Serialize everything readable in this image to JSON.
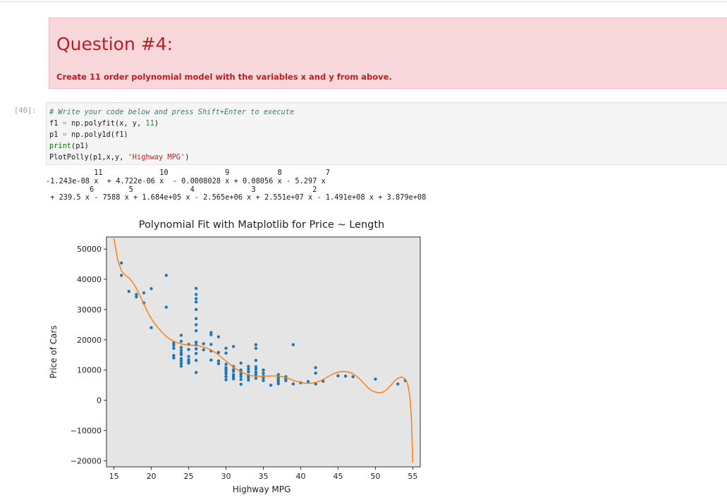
{
  "question": {
    "title": "Question #4:",
    "instruction": "Create 11 order polynomial model with the variables x and y from above."
  },
  "cell": {
    "prompt": "[40]:",
    "code": {
      "comment": "# Write your code below and press Shift+Enter to execute",
      "line2_a": "f1 ",
      "line2_op": "=",
      "line2_b": " np.polyfit(x, y, ",
      "line2_num": "11",
      "line2_c": ")",
      "line3_a": "p1 ",
      "line3_op": "=",
      "line3_b": " np.poly1d(f1)",
      "line4_kw": "print",
      "line4_b": "(p1)",
      "line5_a": "PlotPolly(p1,x,y, ",
      "line5_str": "'Highway MPG'",
      "line5_b": ")"
    },
    "output": [
      "           11             10             9           8          7",
      "-1.243e-08 x  + 4.722e-06 x  - 0.0008028 x + 0.08056 x - 5.297 x",
      "          6        5             4             3             2",
      " + 239.5 x - 7588 x + 1.684e+05 x - 2.565e+06 x + 2.551e+07 x - 1.491e+08 x + 3.879e+08"
    ]
  },
  "chart_data": {
    "type": "scatter",
    "title": "Polynomial Fit with Matplotlib for Price ~ Length",
    "xlabel": "Highway MPG",
    "ylabel": "Price of Cars",
    "xlim": [
      14,
      56
    ],
    "ylim": [
      -22000,
      54000
    ],
    "x_ticks": [
      15,
      20,
      25,
      30,
      35,
      40,
      45,
      50,
      55
    ],
    "y_ticks": [
      50000,
      40000,
      30000,
      20000,
      10000,
      0,
      -10000,
      -20000
    ],
    "y_tick_labels": [
      "50000",
      "40000",
      "30000",
      "20000",
      "10000",
      "0",
      "−10000",
      "−20000"
    ],
    "grid": false,
    "background": "#e5e5e5",
    "colors": {
      "points": "#1f77b4",
      "fit": "#ff7f0e"
    },
    "points": [
      [
        16,
        45400
      ],
      [
        16,
        41300
      ],
      [
        17,
        36000
      ],
      [
        18,
        35000
      ],
      [
        18,
        34200
      ],
      [
        19,
        35500
      ],
      [
        19,
        32200
      ],
      [
        20,
        36900
      ],
      [
        20,
        24000
      ],
      [
        22,
        41300
      ],
      [
        22,
        30800
      ],
      [
        23,
        19000
      ],
      [
        23,
        18200
      ],
      [
        23,
        17200
      ],
      [
        23,
        14800
      ],
      [
        23,
        14000
      ],
      [
        24,
        21500
      ],
      [
        24,
        19500
      ],
      [
        24,
        17500
      ],
      [
        24,
        15600
      ],
      [
        24,
        12200
      ],
      [
        24,
        11300
      ],
      [
        25,
        18500
      ],
      [
        25,
        16800
      ],
      [
        25,
        14500
      ],
      [
        25,
        13400
      ],
      [
        25,
        12900
      ],
      [
        25,
        12300
      ],
      [
        24,
        16500
      ],
      [
        24,
        15100
      ],
      [
        24,
        13800
      ],
      [
        24,
        13000
      ],
      [
        26,
        37000
      ],
      [
        26,
        35000
      ],
      [
        26,
        33600
      ],
      [
        26,
        32500
      ],
      [
        26,
        30000
      ],
      [
        26,
        27000
      ],
      [
        26,
        25000
      ],
      [
        26,
        23000
      ],
      [
        26,
        19200
      ],
      [
        26,
        18300
      ],
      [
        26,
        17000
      ],
      [
        26,
        15500
      ],
      [
        26,
        13200
      ],
      [
        26,
        9200
      ],
      [
        27,
        18700
      ],
      [
        27,
        16700
      ],
      [
        28,
        22400
      ],
      [
        28,
        21700
      ],
      [
        28,
        18500
      ],
      [
        28,
        16300
      ],
      [
        28,
        13300
      ],
      [
        29,
        21000
      ],
      [
        29,
        15800
      ],
      [
        29,
        13000
      ],
      [
        29,
        12100
      ],
      [
        30,
        17200
      ],
      [
        30,
        15600
      ],
      [
        30,
        11900
      ],
      [
        30,
        10800
      ],
      [
        30,
        10200
      ],
      [
        30,
        9600
      ],
      [
        30,
        8800
      ],
      [
        30,
        7800
      ],
      [
        30,
        6800
      ],
      [
        31,
        17800
      ],
      [
        31,
        11200
      ],
      [
        31,
        10100
      ],
      [
        31,
        9600
      ],
      [
        31,
        8500
      ],
      [
        31,
        7800
      ],
      [
        31,
        7100
      ],
      [
        32,
        12300
      ],
      [
        32,
        10000
      ],
      [
        32,
        9300
      ],
      [
        32,
        8600
      ],
      [
        32,
        7900
      ],
      [
        32,
        6900
      ],
      [
        32,
        5300
      ],
      [
        33,
        11200
      ],
      [
        33,
        10300
      ],
      [
        33,
        9400
      ],
      [
        33,
        8200
      ],
      [
        33,
        7600
      ],
      [
        33,
        6700
      ],
      [
        34,
        18400
      ],
      [
        34,
        17200
      ],
      [
        34,
        13200
      ],
      [
        34,
        11100
      ],
      [
        34,
        10300
      ],
      [
        34,
        9300
      ],
      [
        34,
        8500
      ],
      [
        34,
        7300
      ],
      [
        35,
        10000
      ],
      [
        35,
        9000
      ],
      [
        35,
        8000
      ],
      [
        35,
        7400
      ],
      [
        35,
        6500
      ],
      [
        36,
        5000
      ],
      [
        37,
        8500
      ],
      [
        37,
        7600
      ],
      [
        37,
        6900
      ],
      [
        37,
        6200
      ],
      [
        37,
        5500
      ],
      [
        38,
        7800
      ],
      [
        38,
        7100
      ],
      [
        38,
        6500
      ],
      [
        39,
        18400
      ],
      [
        39,
        5400
      ],
      [
        40,
        5800
      ],
      [
        41,
        6200
      ],
      [
        42,
        10800
      ],
      [
        42,
        9000
      ],
      [
        42,
        5400
      ],
      [
        43,
        6300
      ],
      [
        45,
        8100
      ],
      [
        46,
        8000
      ],
      [
        47,
        7800
      ],
      [
        50,
        7000
      ],
      [
        53,
        5400
      ],
      [
        54,
        6500
      ]
    ],
    "fit": [
      [
        15,
        53500
      ],
      [
        15.5,
        46500
      ],
      [
        16,
        42800
      ],
      [
        16.5,
        41400
      ],
      [
        17,
        40500
      ],
      [
        17.5,
        39000
      ],
      [
        18,
        37000
      ],
      [
        18.5,
        34500
      ],
      [
        19,
        31800
      ],
      [
        19.5,
        29200
      ],
      [
        20,
        27000
      ],
      [
        20.5,
        25200
      ],
      [
        21,
        23700
      ],
      [
        21.5,
        22300
      ],
      [
        22,
        21100
      ],
      [
        22.5,
        20200
      ],
      [
        23,
        19500
      ],
      [
        23.5,
        19000
      ],
      [
        24,
        18600
      ],
      [
        24.5,
        18400
      ],
      [
        25,
        18300
      ],
      [
        25.5,
        18200
      ],
      [
        26,
        18100
      ],
      [
        26.5,
        17900
      ],
      [
        27,
        17600
      ],
      [
        27.5,
        17200
      ],
      [
        28,
        16600
      ],
      [
        28.5,
        15900
      ],
      [
        29,
        15000
      ],
      [
        29.5,
        14000
      ],
      [
        30,
        13000
      ],
      [
        30.5,
        12000
      ],
      [
        31,
        11000
      ],
      [
        31.5,
        10100
      ],
      [
        32,
        9400
      ],
      [
        32.5,
        8800
      ],
      [
        33,
        8400
      ],
      [
        33.5,
        8100
      ],
      [
        34,
        8000
      ],
      [
        34.5,
        7900
      ],
      [
        35,
        7950
      ],
      [
        35.5,
        8000
      ],
      [
        36,
        8050
      ],
      [
        36.5,
        8050
      ],
      [
        37,
        8000
      ],
      [
        37.5,
        7800
      ],
      [
        38,
        7500
      ],
      [
        38.5,
        7100
      ],
      [
        39,
        6600
      ],
      [
        39.5,
        6200
      ],
      [
        40,
        5900
      ],
      [
        40.5,
        5700
      ],
      [
        41,
        5600
      ],
      [
        41.5,
        5700
      ],
      [
        42,
        5900
      ],
      [
        42.5,
        6300
      ],
      [
        43,
        6900
      ],
      [
        43.5,
        7600
      ],
      [
        44,
        8300
      ],
      [
        44.5,
        8900
      ],
      [
        45,
        9300
      ],
      [
        45.5,
        9500
      ],
      [
        46,
        9500
      ],
      [
        46.5,
        9300
      ],
      [
        47,
        8800
      ],
      [
        47.5,
        7900
      ],
      [
        48,
        6800
      ],
      [
        48.5,
        5500
      ],
      [
        49,
        4200
      ],
      [
        49.5,
        3200
      ],
      [
        50,
        2700
      ],
      [
        50.5,
        2500
      ],
      [
        51,
        2700
      ],
      [
        51.5,
        3500
      ],
      [
        52,
        4800
      ],
      [
        52.5,
        6200
      ],
      [
        53,
        7300
      ],
      [
        53.5,
        7700
      ],
      [
        54,
        7000
      ],
      [
        54.3,
        5500
      ],
      [
        54.6,
        1500
      ],
      [
        54.8,
        -5000
      ],
      [
        55,
        -20500
      ]
    ]
  }
}
